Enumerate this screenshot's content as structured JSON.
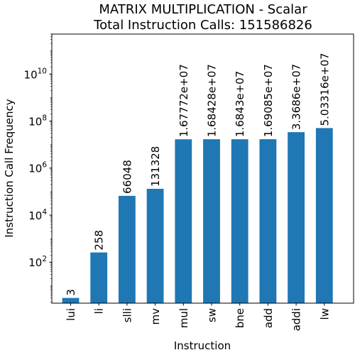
{
  "chart_data": {
    "type": "bar",
    "title": [
      "MATRIX MULTIPLICATION - Scalar",
      "Total Instruction Calls: 151586826"
    ],
    "xlabel": "Instruction",
    "ylabel": "Instruction Call Frequency",
    "yscale": "log",
    "ylim": [
      1.8,
      500000000000.0
    ],
    "yticks": [
      {
        "value": 100,
        "base": "10",
        "exp": "2"
      },
      {
        "value": 10000,
        "base": "10",
        "exp": "4"
      },
      {
        "value": 1000000,
        "base": "10",
        "exp": "6"
      },
      {
        "value": 100000000,
        "base": "10",
        "exp": "8"
      },
      {
        "value": 10000000000,
        "base": "10",
        "exp": "10"
      }
    ],
    "categories": [
      "lui",
      "li",
      "slli",
      "mv",
      "mul",
      "sw",
      "bne",
      "add",
      "addi",
      "lw"
    ],
    "values": [
      3,
      258,
      66048,
      131328,
      16777200,
      16842800,
      16843000,
      16908500,
      33686000,
      50331600
    ],
    "data_labels": [
      "3",
      "258",
      "66048",
      "131328",
      "1.67772e+07",
      "1.68428e+07",
      "1.6843e+07",
      "1.69085e+07",
      "3.3686e+07",
      "5.03316e+07"
    ],
    "bar_color": "#1f77b4",
    "grid": false,
    "legend": "none"
  }
}
